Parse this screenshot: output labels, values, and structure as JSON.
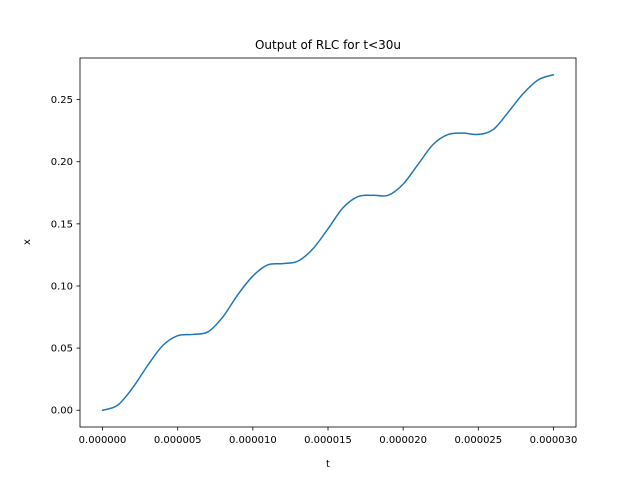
{
  "chart_data": {
    "type": "line",
    "title": "Output of RLC for t<30u",
    "xlabel": "t",
    "ylabel": "x",
    "xlim": [
      -1.5e-06,
      3.15e-05
    ],
    "ylim": [
      -0.0135,
      0.2835
    ],
    "x_ticks": [
      0,
      5e-06,
      1e-05,
      1.5e-05,
      2e-05,
      2.5e-05,
      3e-05
    ],
    "x_tick_labels": [
      "0.000000",
      "0.000005",
      "0.000010",
      "0.000015",
      "0.000020",
      "0.000025",
      "0.000030"
    ],
    "y_ticks": [
      0,
      0.05,
      0.1,
      0.15,
      0.2,
      0.25
    ],
    "y_tick_labels": [
      "0.00",
      "0.05",
      "0.10",
      "0.15",
      "0.20",
      "0.25"
    ],
    "grid": false,
    "series": [
      {
        "color": "#1f77b4",
        "x": [
          0,
          1e-06,
          2e-06,
          3e-06,
          4e-06,
          5e-06,
          6e-06,
          7e-06,
          8e-06,
          9e-06,
          1e-05,
          1.1e-05,
          1.2e-05,
          1.3e-05,
          1.4e-05,
          1.5e-05,
          1.6e-05,
          1.7e-05,
          1.8e-05,
          1.9e-05,
          2e-05,
          2.1e-05,
          2.2e-05,
          2.3e-05,
          2.4e-05,
          2.5e-05,
          2.6e-05,
          2.7e-05,
          2.8e-05,
          2.9e-05,
          3e-05
        ],
        "y": [
          0.0,
          0.004,
          0.018,
          0.036,
          0.052,
          0.06,
          0.061,
          0.063,
          0.075,
          0.093,
          0.108,
          0.117,
          0.118,
          0.12,
          0.13,
          0.146,
          0.163,
          0.172,
          0.173,
          0.173,
          0.182,
          0.198,
          0.214,
          0.222,
          0.223,
          0.222,
          0.226,
          0.24,
          0.255,
          0.266,
          0.27
        ]
      }
    ]
  }
}
